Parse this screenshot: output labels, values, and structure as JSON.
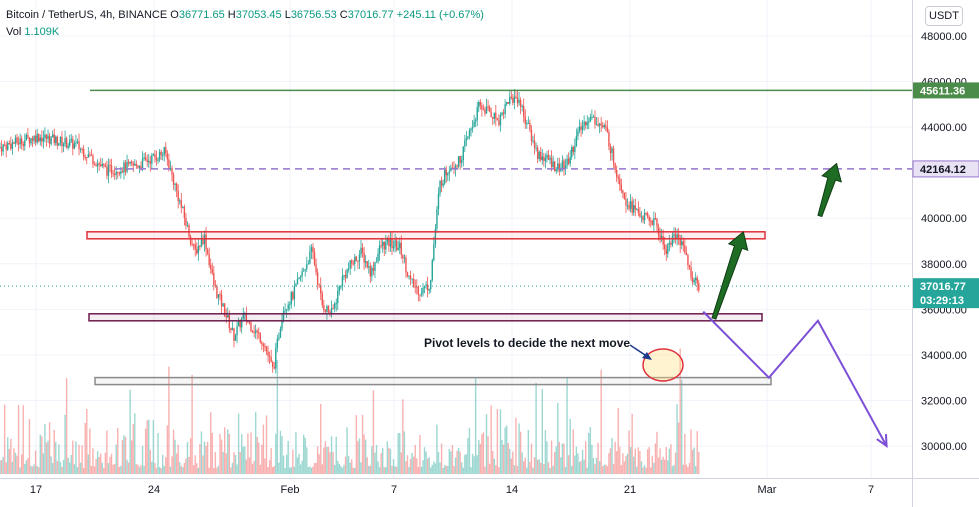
{
  "header": {
    "symbol": "Bitcoin / TetherUS, 4h, BINANCE",
    "open_label": "O",
    "open": "36771.65",
    "high_label": "H",
    "high": "37053.45",
    "low_label": "L",
    "low": "36756.53",
    "close_label": "C",
    "close": "37016.77",
    "change": "+245.11 (+0.67%)",
    "vol_label": "Vol",
    "vol": "1.109K"
  },
  "currency": "USDT",
  "colors": {
    "up": "#26a69a",
    "down": "#ef5350",
    "resistance_green": "#4c8c4a",
    "dashed_purple": "#9575cd",
    "box_red": "#e0303b",
    "box_purple": "#6d1a4e",
    "box_gray": "#8a8a8a",
    "arrow_green": "#1e6b24",
    "projection": "#7d4fd6"
  },
  "annotation_text": "Pivot levels to decide the next move",
  "chart_data": {
    "type": "candlestick",
    "title": "Bitcoin / TetherUS, 4h, BINANCE",
    "ylim": [
      29000,
      49000
    ],
    "y_ticks": [
      "48000.00",
      "46000.00",
      "44000.00",
      "40000.00",
      "38000.00",
      "36000.00",
      "34000.00",
      "32000.00",
      "30000.00"
    ],
    "x_ticks": [
      "17",
      "24",
      "Feb",
      "7",
      "14",
      "21",
      "Mar",
      "7"
    ],
    "price_tags": [
      {
        "value": "45611.36",
        "kind": "green"
      },
      {
        "value": "42164.12",
        "kind": "purple"
      },
      {
        "value": "37016.77",
        "kind": "last",
        "countdown": "03:29:13"
      }
    ],
    "horizontal_levels": [
      {
        "name": "resistance",
        "value": 45611.36,
        "style": "solid"
      },
      {
        "name": "mid",
        "value": 42164.12,
        "style": "dashed"
      },
      {
        "name": "last",
        "value": 37016.77,
        "style": "dotted"
      }
    ],
    "zones": [
      {
        "name": "upper-pivot",
        "value": 39250
      },
      {
        "name": "lower-pivot",
        "value": 35650
      },
      {
        "name": "support",
        "value": 32850
      }
    ],
    "price_path": [
      [
        0,
        43100
      ],
      [
        4,
        43600
      ],
      [
        8,
        43200
      ],
      [
        11,
        42100
      ],
      [
        14,
        42300
      ],
      [
        17,
        42900
      ],
      [
        20,
        38500
      ],
      [
        21,
        39200
      ],
      [
        22,
        37000
      ],
      [
        23,
        36000
      ],
      [
        24,
        34800
      ],
      [
        25,
        35700
      ],
      [
        27,
        34600
      ],
      [
        28,
        33300
      ],
      [
        29,
        36000
      ],
      [
        30,
        36600
      ],
      [
        31,
        37600
      ],
      [
        32,
        38600
      ],
      [
        33,
        36200
      ],
      [
        34,
        35800
      ],
      [
        35,
        37300
      ],
      [
        36,
        38000
      ],
      [
        37,
        38500
      ],
      [
        38,
        37600
      ],
      [
        39,
        38800
      ],
      [
        40,
        38900
      ],
      [
        41,
        38700
      ],
      [
        42,
        37200
      ],
      [
        43,
        36800
      ],
      [
        44,
        37100
      ],
      [
        45,
        41500
      ],
      [
        46,
        42300
      ],
      [
        47,
        42500
      ],
      [
        48,
        43700
      ],
      [
        49,
        44900
      ],
      [
        50,
        44700
      ],
      [
        51,
        44300
      ],
      [
        52,
        45200
      ],
      [
        53,
        45300
      ],
      [
        54,
        44000
      ],
      [
        55,
        42800
      ],
      [
        56,
        42600
      ],
      [
        57,
        42200
      ],
      [
        58,
        42400
      ],
      [
        59,
        43600
      ],
      [
        60,
        44400
      ],
      [
        61,
        44300
      ],
      [
        62,
        43800
      ],
      [
        63,
        42100
      ],
      [
        64,
        40800
      ],
      [
        65,
        40300
      ],
      [
        66,
        40000
      ],
      [
        67,
        39800
      ],
      [
        68,
        38600
      ],
      [
        69,
        39300
      ],
      [
        70,
        38700
      ],
      [
        70.5,
        37600
      ],
      [
        71.3,
        37000
      ]
    ],
    "projection_path": [
      [
        71.3,
        35900
      ],
      [
        78,
        33000
      ],
      [
        83,
        35500
      ],
      [
        90,
        30000
      ]
    ],
    "bullish_arrows": [
      {
        "from": [
          72.5,
          35600
        ],
        "to": [
          75.5,
          39400
        ]
      },
      {
        "from": [
          83.3,
          40100
        ],
        "to": [
          85,
          42400
        ]
      }
    ]
  }
}
